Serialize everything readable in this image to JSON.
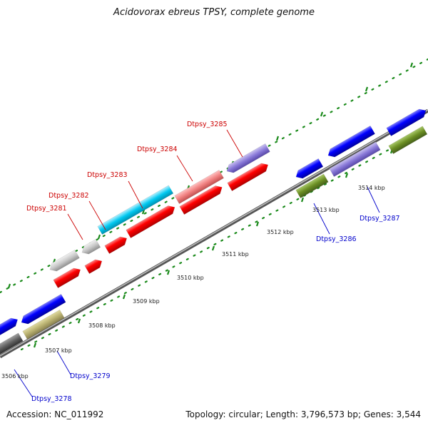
{
  "title": "Acidovorax ebreus TPSY, complete genome",
  "footer": {
    "accession": "Accession: NC_011992",
    "summary": "Topology: circular; Length: 3,796,573 bp; Genes: 3,544"
  },
  "map": {
    "kbp_ticks": [
      {
        "text": "3506 kbp",
        "pos": 3506
      },
      {
        "text": "3507 kbp",
        "pos": 3507
      },
      {
        "text": "3508 kbp",
        "pos": 3508
      },
      {
        "text": "3509 kbp",
        "pos": 3509
      },
      {
        "text": "3510 kbp",
        "pos": 3510
      },
      {
        "text": "3511 kbp",
        "pos": 3511
      },
      {
        "text": "3512 kbp",
        "pos": 3512
      },
      {
        "text": "3513 kbp",
        "pos": 3513
      },
      {
        "text": "3514 kbp",
        "pos": 3514
      }
    ],
    "gene_labels": [
      {
        "text": "Dtpsy_3278",
        "color": "#0000cc"
      },
      {
        "text": "Dtpsy_3279",
        "color": "#0000cc"
      },
      {
        "text": "Dtpsy_3281",
        "color": "#cc0000"
      },
      {
        "text": "Dtpsy_3282",
        "color": "#cc0000"
      },
      {
        "text": "Dtpsy_3283",
        "color": "#cc0000"
      },
      {
        "text": "Dtpsy_3284",
        "color": "#cc0000"
      },
      {
        "text": "Dtpsy_3285",
        "color": "#cc0000"
      },
      {
        "text": "Dtpsy_3286",
        "color": "#0000cc"
      },
      {
        "text": "Dtpsy_3287",
        "color": "#0000cc"
      }
    ],
    "colors": {
      "backbone": "#8a8a8a",
      "tick_dots": "#1a8a1a",
      "red": "#ff0000",
      "blue": "#0000ff",
      "cyan": "#00c8f0",
      "pink": "#f08080",
      "gray": "#bdbdbd",
      "olive": "#6b8e23",
      "khaki": "#b8b070",
      "lavender": "#8878d8",
      "darkgray": "#606060"
    }
  }
}
